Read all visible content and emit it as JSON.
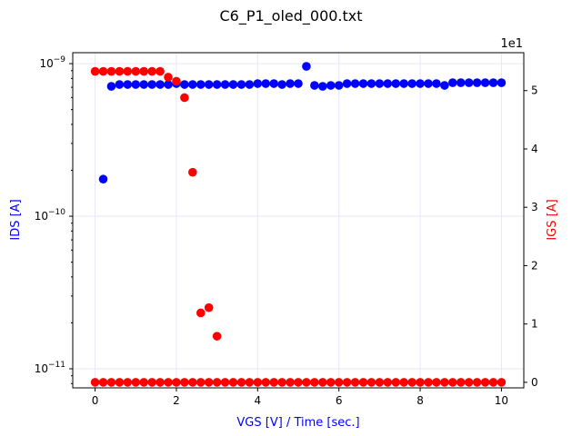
{
  "chart_data": {
    "type": "scatter",
    "title": "C6_P1_oled_000.txt",
    "xlabel": "VGS [V] / Time [sec.]",
    "ylabel_left": "IDS [A]",
    "ylabel_right": "IGS [A]",
    "right_axis_multiplier": "1e1",
    "xlim": [
      -0.55,
      10.55
    ],
    "x_ticks": [
      0,
      2,
      4,
      6,
      8,
      10
    ],
    "left_axis": {
      "scale": "log",
      "ylim": [
        7.5e-12,
        1.18e-09
      ],
      "ticks": [
        1e-11,
        1e-10,
        1e-09
      ]
    },
    "right_axis": {
      "scale": "linear",
      "ylim": [
        -0.95,
        56.5
      ],
      "ticks": [
        0,
        1,
        2,
        3,
        4,
        5
      ]
    },
    "grid": true,
    "colors": {
      "ids": "#0000ff",
      "igs": "#ff0000",
      "grid": "#e6e6fa",
      "axis": "#000000"
    },
    "series": [
      {
        "axis": "left",
        "x": [
          0.2,
          0.4,
          0.6,
          0.8,
          1.0,
          1.2,
          1.4,
          1.6,
          1.8,
          2.0,
          2.2,
          2.4,
          2.6,
          2.8,
          3.0,
          3.2,
          3.4,
          3.6,
          3.8,
          4.0,
          4.2,
          4.4,
          4.6,
          4.8,
          5.0,
          5.2,
          5.4,
          5.6,
          5.8,
          6.0,
          6.2,
          6.4,
          6.6,
          6.8,
          7.0,
          7.2,
          7.4,
          7.6,
          7.8,
          8.0,
          8.2,
          8.4,
          8.6,
          8.8,
          9.0,
          9.2,
          9.4,
          9.6,
          9.8,
          10.0
        ],
        "values": [
          1.75e-10,
          7.1e-10,
          7.3e-10,
          7.3e-10,
          7.3e-10,
          7.3e-10,
          7.3e-10,
          7.3e-10,
          7.3e-10,
          7.4e-10,
          7.3e-10,
          7.3e-10,
          7.3e-10,
          7.3e-10,
          7.3e-10,
          7.3e-10,
          7.3e-10,
          7.3e-10,
          7.3e-10,
          7.4e-10,
          7.4e-10,
          7.4e-10,
          7.3e-10,
          7.4e-10,
          7.4e-10,
          9.6e-10,
          7.2e-10,
          7.1e-10,
          7.2e-10,
          7.2e-10,
          7.4e-10,
          7.4e-10,
          7.4e-10,
          7.4e-10,
          7.4e-10,
          7.4e-10,
          7.4e-10,
          7.4e-10,
          7.4e-10,
          7.4e-10,
          7.4e-10,
          7.4e-10,
          7.2e-10,
          7.5e-10,
          7.5e-10,
          7.5e-10,
          7.5e-10,
          7.5e-10,
          7.5e-10,
          7.5e-10
        ]
      },
      {
        "axis": "right",
        "x": [
          0.0,
          0.2,
          0.4,
          0.6,
          0.8,
          1.0,
          1.2,
          1.4,
          1.6,
          1.8,
          2.0,
          2.2,
          2.4,
          2.6,
          2.8,
          3.0
        ],
        "values": [
          53.3,
          53.3,
          53.3,
          53.3,
          53.3,
          53.3,
          53.3,
          53.3,
          53.3,
          52.3,
          51.6,
          48.8,
          36.0,
          11.9,
          12.8,
          7.9
        ]
      },
      {
        "axis": "right",
        "x": [
          0.0,
          0.2,
          0.4,
          0.6,
          0.8,
          1.0,
          1.2,
          1.4,
          1.6,
          1.8,
          2.0,
          2.2,
          2.4,
          2.6,
          2.8,
          3.0,
          3.2,
          3.4,
          3.6,
          3.8,
          4.0,
          4.2,
          4.4,
          4.6,
          4.8,
          5.0,
          5.2,
          5.4,
          5.6,
          5.8,
          6.0,
          6.2,
          6.4,
          6.6,
          6.8,
          7.0,
          7.2,
          7.4,
          7.6,
          7.8,
          8.0,
          8.2,
          8.4,
          8.6,
          8.8,
          9.0,
          9.2,
          9.4,
          9.6,
          9.8,
          10.0
        ],
        "values": [
          0,
          0,
          0,
          0,
          0,
          0,
          0,
          0,
          0,
          0,
          0,
          0,
          0,
          0,
          0,
          0,
          0,
          0,
          0,
          0,
          0,
          0,
          0,
          0,
          0,
          0,
          0,
          0,
          0,
          0,
          0,
          0,
          0,
          0,
          0,
          0,
          0,
          0,
          0,
          0,
          0,
          0,
          0,
          0,
          0,
          0,
          0,
          0,
          0,
          0,
          0
        ]
      }
    ]
  }
}
